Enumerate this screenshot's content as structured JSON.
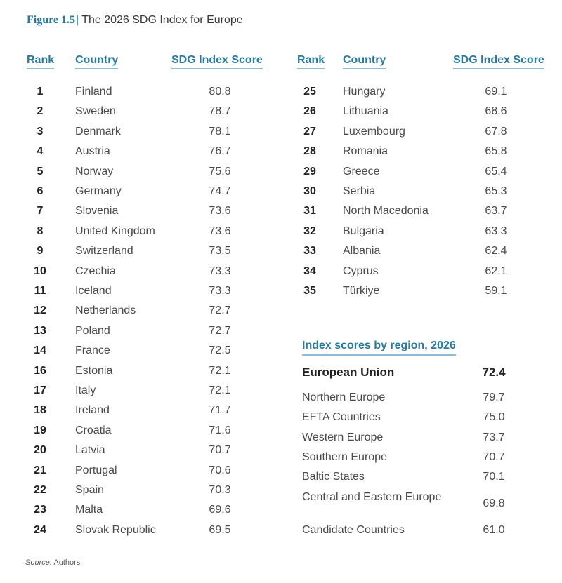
{
  "figure": {
    "number": "Figure 1.5",
    "separator": "|",
    "title": "The 2026 SDG Index for Europe"
  },
  "table": {
    "headers": {
      "rank": "Rank",
      "country": "Country",
      "score": "SDG Index Score"
    },
    "left_rows": [
      {
        "rank": "1",
        "country": "Finland",
        "score": "80.8"
      },
      {
        "rank": "2",
        "country": "Sweden",
        "score": "78.7"
      },
      {
        "rank": "3",
        "country": "Denmark",
        "score": "78.1"
      },
      {
        "rank": "4",
        "country": "Austria",
        "score": "76.7"
      },
      {
        "rank": "5",
        "country": "Norway",
        "score": "75.6"
      },
      {
        "rank": "6",
        "country": "Germany",
        "score": "74.7"
      },
      {
        "rank": "7",
        "country": "Slovenia",
        "score": "73.6"
      },
      {
        "rank": "8",
        "country": "United Kingdom",
        "score": "73.6"
      },
      {
        "rank": "9",
        "country": "Switzerland",
        "score": "73.5"
      },
      {
        "rank": "10",
        "country": "Czechia",
        "score": "73.3"
      },
      {
        "rank": "11",
        "country": "Iceland",
        "score": "73.3"
      },
      {
        "rank": "12",
        "country": "Netherlands",
        "score": "72.7"
      },
      {
        "rank": "13",
        "country": "Poland",
        "score": "72.7"
      },
      {
        "rank": "14",
        "country": "France",
        "score": "72.5"
      },
      {
        "rank": "16",
        "country": "Estonia",
        "score": "72.1"
      },
      {
        "rank": "17",
        "country": "Italy",
        "score": "72.1"
      },
      {
        "rank": "18",
        "country": "Ireland",
        "score": "71.7"
      },
      {
        "rank": "19",
        "country": "Croatia",
        "score": "71.6"
      },
      {
        "rank": "20",
        "country": "Latvia",
        "score": "70.7"
      },
      {
        "rank": "21",
        "country": "Portugal",
        "score": "70.6"
      },
      {
        "rank": "22",
        "country": "Spain",
        "score": "70.3"
      },
      {
        "rank": "23",
        "country": "Malta",
        "score": "69.6"
      },
      {
        "rank": "24",
        "country": "Slovak Republic",
        "score": "69.5"
      }
    ],
    "right_rows": [
      {
        "rank": "25",
        "country": "Hungary",
        "score": "69.1"
      },
      {
        "rank": "26",
        "country": "Lithuania",
        "score": "68.6"
      },
      {
        "rank": "27",
        "country": "Luxembourg",
        "score": "67.8"
      },
      {
        "rank": "28",
        "country": "Romania",
        "score": "65.8"
      },
      {
        "rank": "29",
        "country": "Greece",
        "score": "65.4"
      },
      {
        "rank": "30",
        "country": "Serbia",
        "score": "65.3"
      },
      {
        "rank": "31",
        "country": "North Macedonia",
        "score": "63.7"
      },
      {
        "rank": "32",
        "country": "Bulgaria",
        "score": "63.3"
      },
      {
        "rank": "33",
        "country": "Albania",
        "score": "62.4"
      },
      {
        "rank": "34",
        "country": "Cyprus",
        "score": "62.1"
      },
      {
        "rank": "35",
        "country": "Türkiye",
        "score": "59.1"
      }
    ]
  },
  "regions": {
    "title": "Index scores by region, 2026",
    "eu": {
      "name": "European Union",
      "score": "72.4"
    },
    "rows": [
      {
        "name": "Northern Europe",
        "score": "79.7"
      },
      {
        "name": "EFTA Countries",
        "score": "75.0"
      },
      {
        "name": "Western Europe",
        "score": "73.7"
      },
      {
        "name": "Southern Europe",
        "score": "70.7"
      },
      {
        "name": "Baltic States",
        "score": "70.1"
      },
      {
        "name": "Central and Eastern Europe",
        "score": "69.8"
      },
      {
        "name": "Candidate Countries",
        "score": "61.0"
      }
    ]
  },
  "source": {
    "label": "Source:",
    "text": "Authors"
  }
}
